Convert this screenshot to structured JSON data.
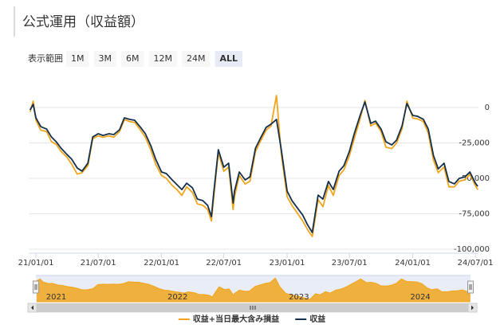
{
  "chart_data": {
    "type": "line",
    "title": "公式運用（収益額）",
    "range_selector": {
      "label": "表示範囲",
      "buttons": [
        "1M",
        "3M",
        "6M",
        "12M",
        "24M",
        "ALL"
      ],
      "selected": "ALL"
    },
    "x": [
      "2020-12-15",
      "2020-12-24",
      "2021-01-01",
      "2021-01-15",
      "2021-02-01",
      "2021-02-15",
      "2021-03-01",
      "2021-03-15",
      "2021-04-01",
      "2021-04-15",
      "2021-05-01",
      "2021-05-15",
      "2021-06-01",
      "2021-06-15",
      "2021-07-01",
      "2021-07-15",
      "2021-08-01",
      "2021-08-15",
      "2021-09-01",
      "2021-09-15",
      "2021-10-01",
      "2021-10-15",
      "2021-11-01",
      "2021-11-15",
      "2021-12-01",
      "2021-12-15",
      "2022-01-01",
      "2022-01-15",
      "2022-02-01",
      "2022-02-15",
      "2022-03-01",
      "2022-03-15",
      "2022-04-01",
      "2022-04-15",
      "2022-05-01",
      "2022-05-15",
      "2022-05-26",
      "2022-06-01",
      "2022-06-15",
      "2022-07-01",
      "2022-07-15",
      "2022-07-28",
      "2022-08-01",
      "2022-08-15",
      "2022-09-01",
      "2022-09-15",
      "2022-10-01",
      "2022-10-15",
      "2022-11-01",
      "2022-11-15",
      "2022-12-01",
      "2022-12-15",
      "2023-01-01",
      "2023-01-15",
      "2023-02-01",
      "2023-02-15",
      "2023-03-01",
      "2023-03-15",
      "2023-04-01",
      "2023-04-15",
      "2023-05-01",
      "2023-05-15",
      "2023-06-01",
      "2023-06-15",
      "2023-07-01",
      "2023-07-15",
      "2023-08-01",
      "2023-08-15",
      "2023-09-01",
      "2023-09-15",
      "2023-10-01",
      "2023-10-15",
      "2023-11-01",
      "2023-11-15",
      "2023-12-01",
      "2023-12-15",
      "2024-01-01",
      "2024-01-15",
      "2024-02-01",
      "2024-02-15",
      "2024-03-01",
      "2024-03-15",
      "2024-04-01",
      "2024-04-15",
      "2024-05-01",
      "2024-05-15",
      "2024-06-01",
      "2024-06-15",
      "2024-07-01",
      "2024-07-08"
    ],
    "series": [
      {
        "name": "収益+当日最大含み損益",
        "color": "#f0a51c",
        "values": [
          -3000,
          4500,
          -9000,
          -16000,
          -17000,
          -24000,
          -26000,
          -31000,
          -35000,
          -40000,
          -47000,
          -46000,
          -41000,
          -22000,
          -20000,
          -21000,
          -20000,
          -21000,
          -17000,
          -8500,
          -10000,
          -10500,
          -16000,
          -21000,
          -30000,
          -40000,
          -48000,
          -50000,
          -55000,
          -58000,
          -62000,
          -56000,
          -60000,
          -68000,
          -69000,
          -72000,
          -80000,
          -65000,
          -32000,
          -45000,
          -42000,
          -72000,
          -63000,
          -48000,
          -54000,
          -52000,
          -31000,
          -24000,
          -16000,
          -13000,
          8400,
          -33000,
          -63000,
          -69000,
          -75000,
          -80000,
          -86000,
          -91000,
          -65000,
          -70000,
          -55000,
          -62000,
          -48000,
          -44000,
          -34000,
          -22000,
          -8000,
          5000,
          -13000,
          -11000,
          -17000,
          -28000,
          -29000,
          -25000,
          -15000,
          4500,
          -7500,
          -8000,
          -10000,
          -18000,
          -37000,
          -46000,
          -42000,
          -56000,
          -56000,
          -52000,
          -51000,
          -47000,
          -55000,
          -58000
        ]
      },
      {
        "name": "収益",
        "color": "#15304d",
        "values": [
          -1700,
          2200,
          -7300,
          -13500,
          -15200,
          -20800,
          -24200,
          -28700,
          -33100,
          -36500,
          -42700,
          -44900,
          -39300,
          -20800,
          -18500,
          -19700,
          -18500,
          -19100,
          -15700,
          -7300,
          -8400,
          -9000,
          -14000,
          -18500,
          -27000,
          -36500,
          -45500,
          -46600,
          -51100,
          -54500,
          -57900,
          -53400,
          -56700,
          -64600,
          -65700,
          -69100,
          -77000,
          -61800,
          -29800,
          -42100,
          -39300,
          -67400,
          -59000,
          -45500,
          -51100,
          -48900,
          -28700,
          -21900,
          -14000,
          -11800,
          -8400,
          -29800,
          -59000,
          -65700,
          -71300,
          -75800,
          -82600,
          -88200,
          -61800,
          -64600,
          -52200,
          -57900,
          -44900,
          -41000,
          -30900,
          -18500,
          -5600,
          3900,
          -11200,
          -9600,
          -15200,
          -24200,
          -26400,
          -23000,
          -12900,
          2800,
          -5600,
          -6200,
          -8400,
          -15200,
          -33700,
          -43300,
          -39300,
          -52200,
          -53900,
          -50000,
          -48900,
          -45500,
          -53400,
          -55600
        ]
      }
    ],
    "xlim": [
      "2020-12-11",
      "2024-07-10"
    ],
    "xticks": [
      {
        "value": "2021-01-01",
        "label": "21/01/01"
      },
      {
        "value": "2021-07-01",
        "label": "21/07/01"
      },
      {
        "value": "2022-01-01",
        "label": "22/01/01"
      },
      {
        "value": "2022-07-01",
        "label": "22/07/01"
      },
      {
        "value": "2023-01-01",
        "label": "23/01/01"
      },
      {
        "value": "2023-07-01",
        "label": "23/07/01"
      },
      {
        "value": "2024-01-01",
        "label": "24/01/01"
      },
      {
        "value": "2024-07-01",
        "label": "24/07/01"
      }
    ],
    "ylim": [
      -102800,
      20800
    ],
    "yticks": [
      0,
      {
        "value": -25000,
        "label": "-25,000"
      },
      {
        "value": -50000,
        "label": "-50,000"
      },
      {
        "value": -75000,
        "label": "-75,000"
      },
      {
        "value": -100000,
        "label": "-100,000"
      }
    ],
    "grid": true,
    "navigator_labels": [
      {
        "value": "2021-01-01",
        "label": "2021"
      },
      {
        "value": "2022-01-01",
        "label": "2022"
      },
      {
        "value": "2023-01-01",
        "label": "2023"
      },
      {
        "value": "2024-01-01",
        "label": "2024"
      }
    ]
  }
}
